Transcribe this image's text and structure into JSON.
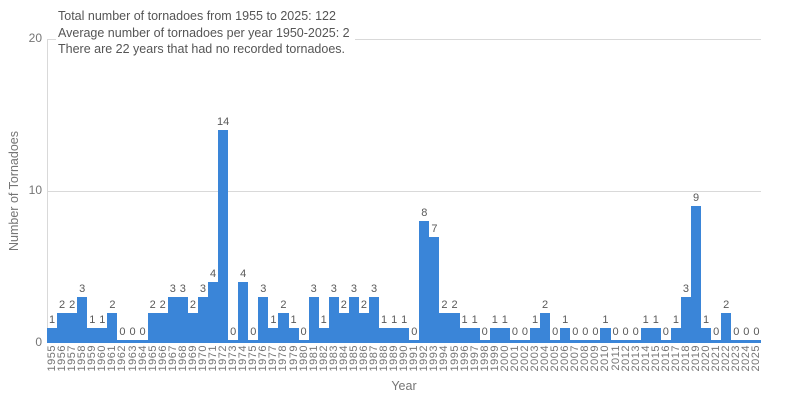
{
  "chart_data": {
    "type": "bar",
    "title": "Total number of tornadoes from 1955 to 2025: 122\nAverage number of tornadoes per year 1950-2025: 2\nThere are 22 years that had no recorded tornadoes.",
    "title_lines": [
      "Total number of tornadoes from 1955 to 2025: 122",
      "Average number of tornadoes per year 1950-2025: 2",
      "There are 22 years that had no recorded tornadoes."
    ],
    "xlabel": "Year",
    "ylabel": "Number of Tornadoes",
    "ylim": [
      0,
      20
    ],
    "yticks": [
      0,
      10,
      20
    ],
    "grid": "horizontal-gridlines-at-10-and-20",
    "legend": "none",
    "bar_labels": "value shown above each bar",
    "categories": [
      1955,
      1956,
      1957,
      1958,
      1959,
      1960,
      1961,
      1962,
      1963,
      1964,
      1965,
      1966,
      1967,
      1968,
      1969,
      1970,
      1971,
      1972,
      1973,
      1974,
      1975,
      1976,
      1977,
      1978,
      1979,
      1980,
      1981,
      1982,
      1983,
      1984,
      1985,
      1986,
      1987,
      1988,
      1989,
      1990,
      1991,
      1992,
      1993,
      1994,
      1995,
      1996,
      1997,
      1998,
      1999,
      2000,
      2001,
      2002,
      2003,
      2004,
      2005,
      2006,
      2007,
      2008,
      2009,
      2010,
      2011,
      2012,
      2013,
      2014,
      2015,
      2016,
      2017,
      2018,
      2019,
      2020,
      2021,
      2022,
      2023,
      2024,
      2025
    ],
    "values": [
      1,
      2,
      2,
      3,
      1,
      1,
      2,
      0,
      0,
      0,
      2,
      2,
      3,
      3,
      2,
      3,
      4,
      14,
      0,
      4,
      0,
      3,
      1,
      2,
      1,
      0,
      3,
      1,
      3,
      2,
      3,
      2,
      3,
      1,
      1,
      1,
      0,
      8,
      7,
      2,
      2,
      1,
      1,
      0,
      1,
      1,
      0,
      0,
      1,
      2,
      0,
      1,
      0,
      0,
      0,
      1,
      0,
      0,
      0,
      1,
      1,
      0,
      1,
      3,
      9,
      1,
      0,
      2,
      0,
      0,
      0
    ]
  },
  "colors": {
    "bar": "#3a85d8",
    "gridline": "#d9d9d9",
    "title_text": "#555555",
    "tick_text": "#757575",
    "value_label_text": "#595959"
  }
}
